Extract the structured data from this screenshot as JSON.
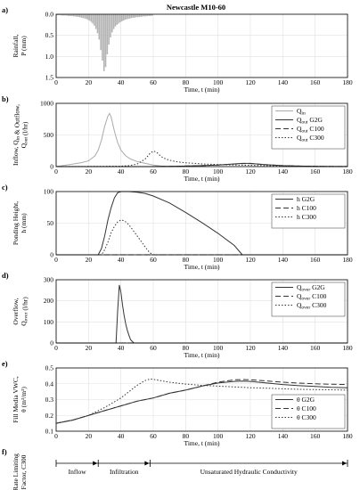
{
  "figure_title": "Newcastle M10-60",
  "chart_data": [
    {
      "id": "a",
      "type": "bar",
      "panel_label": "a)",
      "title": "Newcastle M10-60",
      "ylabel_line1": "Rainfall,",
      "ylabel_line2": "P (mm)",
      "xlabel": "Time, t (min)",
      "xlim": [
        0,
        180
      ],
      "ylim": [
        0,
        1.5
      ],
      "y_reversed": true,
      "yticks": [
        "0.0",
        "0.5",
        "1.0",
        "1.5"
      ],
      "xticks": [
        "0",
        "20",
        "40",
        "60",
        "80",
        "100",
        "120",
        "140",
        "160",
        "180"
      ],
      "bar_color": "#b4b4b4",
      "x": [
        1,
        2,
        3,
        4,
        5,
        6,
        7,
        8,
        9,
        10,
        11,
        12,
        13,
        14,
        15,
        16,
        17,
        18,
        19,
        20,
        21,
        22,
        23,
        24,
        25,
        26,
        27,
        28,
        29,
        30,
        31,
        32,
        33,
        34,
        35,
        36,
        37,
        38,
        39,
        40,
        41,
        42,
        43,
        44,
        45,
        46,
        47,
        48,
        49,
        50,
        51,
        52,
        53,
        54,
        55,
        56,
        57,
        58,
        59,
        60
      ],
      "values": [
        0.02,
        0.02,
        0.02,
        0.03,
        0.03,
        0.03,
        0.03,
        0.04,
        0.04,
        0.04,
        0.05,
        0.05,
        0.06,
        0.06,
        0.07,
        0.08,
        0.09,
        0.1,
        0.11,
        0.13,
        0.15,
        0.18,
        0.22,
        0.27,
        0.35,
        0.45,
        0.6,
        0.85,
        1.1,
        1.35,
        1.25,
        0.95,
        0.72,
        0.55,
        0.43,
        0.35,
        0.29,
        0.25,
        0.22,
        0.19,
        0.17,
        0.15,
        0.13,
        0.12,
        0.11,
        0.1,
        0.09,
        0.08,
        0.08,
        0.07,
        0.07,
        0.06,
        0.06,
        0.05,
        0.05,
        0.05,
        0.04,
        0.04,
        0.04,
        0.03
      ]
    },
    {
      "id": "b",
      "type": "line",
      "panel_label": "b)",
      "ylabel_line1": "Inflow, Q_in & Outflow,",
      "ylabel_line2": "Q_out (l/hr)",
      "xlabel": "Time, t (min)",
      "xlim": [
        0,
        180
      ],
      "ylim": [
        0,
        1000
      ],
      "yticks": [
        "0",
        "500",
        "1000"
      ],
      "xticks": [
        "0",
        "20",
        "40",
        "60",
        "80",
        "100",
        "120",
        "140",
        "160",
        "180"
      ],
      "legend_position": "top-right",
      "series": [
        {
          "name": "Q_in",
          "legend": {
            "main": "Q",
            "sub": "in",
            "suffix": ""
          },
          "color": "#aaaaaa",
          "dash": "",
          "x": [
            0,
            10,
            15,
            20,
            24,
            26,
            28,
            30,
            32,
            33,
            34,
            36,
            38,
            40,
            43,
            46,
            50,
            55,
            60,
            65,
            70
          ],
          "y": [
            0,
            40,
            60,
            90,
            170,
            260,
            420,
            640,
            800,
            840,
            780,
            560,
            380,
            260,
            170,
            120,
            80,
            50,
            25,
            8,
            0
          ]
        },
        {
          "name": "Q_out G2G",
          "legend": {
            "main": "Q",
            "sub": "out",
            "suffix": " G2G"
          },
          "color": "#333333",
          "dash": "",
          "x": [
            0,
            58,
            70,
            80,
            90,
            100,
            108,
            115,
            120,
            125,
            130,
            140,
            150,
            160,
            170,
            180
          ],
          "y": [
            0,
            0,
            3,
            8,
            15,
            25,
            38,
            50,
            50,
            40,
            30,
            15,
            8,
            4,
            2,
            1
          ]
        },
        {
          "name": "Q_out C100",
          "legend": {
            "main": "Q",
            "sub": "out",
            "suffix": " C100"
          },
          "color": "#333333",
          "dash": "6,3",
          "x": [
            0,
            58,
            70,
            80,
            90,
            100,
            108,
            115,
            120,
            125,
            130,
            140,
            150,
            160,
            170,
            180
          ],
          "y": [
            0,
            0,
            3,
            8,
            15,
            25,
            38,
            48,
            48,
            40,
            30,
            15,
            8,
            4,
            2,
            1
          ]
        },
        {
          "name": "Q_out C300",
          "legend": {
            "main": "Q",
            "sub": "out",
            "suffix": " C300"
          },
          "color": "#333333",
          "dash": "1.5,2",
          "x": [
            0,
            40,
            45,
            50,
            55,
            58,
            60,
            62,
            64,
            66,
            70,
            75,
            80,
            90,
            100,
            110,
            120,
            130,
            140,
            150,
            160,
            170,
            180
          ],
          "y": [
            0,
            5,
            15,
            40,
            120,
            210,
            245,
            230,
            180,
            140,
            100,
            75,
            60,
            42,
            32,
            25,
            20,
            15,
            10,
            7,
            5,
            3,
            2
          ]
        }
      ]
    },
    {
      "id": "c",
      "type": "line",
      "panel_label": "c)",
      "ylabel_line1": "Ponding Height,",
      "ylabel_line2": "h (mm)",
      "xlabel": "Time, t (min)",
      "xlim": [
        0,
        180
      ],
      "ylim": [
        0,
        100
      ],
      "yticks": [
        "0",
        "50",
        "100"
      ],
      "xticks": [
        "0",
        "20",
        "40",
        "60",
        "80",
        "100",
        "120",
        "140",
        "160",
        "180"
      ],
      "legend_position": "top-right",
      "series": [
        {
          "name": "h G2G",
          "legend": {
            "main": "h",
            "sub": "",
            "suffix": " G2G"
          },
          "color": "#333333",
          "dash": "",
          "x": [
            0,
            26,
            28,
            30,
            32,
            34,
            36,
            38,
            40,
            45,
            50,
            55,
            60,
            70,
            80,
            90,
            100,
            110,
            115,
            116,
            180
          ],
          "y": [
            0,
            0,
            10,
            30,
            55,
            75,
            90,
            98,
            100,
            100,
            99,
            97,
            93,
            82,
            67,
            51,
            34,
            15,
            0,
            0,
            0
          ]
        },
        {
          "name": "h C100",
          "legend": {
            "main": "h",
            "sub": "",
            "suffix": " C100"
          },
          "color": "#333333",
          "dash": "6,3",
          "x": [
            0,
            180
          ],
          "y": [
            0,
            0
          ]
        },
        {
          "name": "h C300",
          "legend": {
            "main": "h",
            "sub": "",
            "suffix": " C300"
          },
          "color": "#333333",
          "dash": "1.5,2",
          "x": [
            0,
            28,
            30,
            32,
            34,
            36,
            38,
            40,
            42,
            44,
            46,
            48,
            50,
            52,
            54,
            56,
            58,
            60,
            180
          ],
          "y": [
            0,
            0,
            8,
            20,
            35,
            45,
            52,
            55,
            54,
            50,
            44,
            37,
            30,
            23,
            16,
            9,
            3,
            0,
            0
          ]
        }
      ]
    },
    {
      "id": "d",
      "type": "line",
      "panel_label": "d)",
      "ylabel_line1": "Overflow,",
      "ylabel_line2": "Q_over (l/hr)",
      "xlabel": "Time, t (min)",
      "xlim": [
        0,
        180
      ],
      "ylim": [
        0,
        300
      ],
      "yticks": [
        "0",
        "100",
        "200",
        "300"
      ],
      "xticks": [
        "0",
        "20",
        "40",
        "60",
        "80",
        "100",
        "120",
        "140",
        "160",
        "180"
      ],
      "legend_position": "top-right",
      "series": [
        {
          "name": "Q_over G2G",
          "legend": {
            "main": "Q",
            "sub": "over",
            "suffix": " G2G"
          },
          "color": "#333333",
          "dash": "",
          "x": [
            0,
            37,
            38,
            39,
            40,
            41,
            42,
            43,
            44,
            45,
            46,
            48,
            180
          ],
          "y": [
            0,
            0,
            150,
            275,
            240,
            180,
            130,
            90,
            60,
            35,
            15,
            0,
            0
          ]
        },
        {
          "name": "Q_over C100",
          "legend": {
            "main": "Q",
            "sub": "over",
            "suffix": " C100"
          },
          "color": "#333333",
          "dash": "6,3",
          "x": [
            0,
            180
          ],
          "y": [
            0,
            0
          ]
        },
        {
          "name": "Q_over C300",
          "legend": {
            "main": "Q",
            "sub": "over",
            "suffix": " C300"
          },
          "color": "#333333",
          "dash": "1.5,2",
          "x": [
            0,
            180
          ],
          "y": [
            0,
            0
          ]
        }
      ]
    },
    {
      "id": "e",
      "type": "line",
      "panel_label": "e)",
      "ylabel_line1": "Fill Media VWC,",
      "ylabel_line2": "θ (m³/m³)",
      "xlabel": "Time, t (min)",
      "xlim": [
        0,
        180
      ],
      "ylim": [
        0.1,
        0.5
      ],
      "yticks": [
        "0.1",
        "0.2",
        "0.3",
        "0.4",
        "0.5"
      ],
      "xticks": [
        "0",
        "20",
        "40",
        "60",
        "80",
        "100",
        "120",
        "140",
        "160",
        "180"
      ],
      "legend_position": "bottom-right",
      "series": [
        {
          "name": "θ G2G",
          "legend": {
            "main": "θ",
            "sub": "",
            "suffix": " G2G"
          },
          "color": "#333333",
          "dash": "",
          "x": [
            0,
            10,
            20,
            30,
            40,
            50,
            60,
            70,
            80,
            90,
            100,
            110,
            115,
            120,
            130,
            140,
            150,
            160,
            170,
            180
          ],
          "y": [
            0.15,
            0.17,
            0.2,
            0.23,
            0.26,
            0.29,
            0.31,
            0.34,
            0.36,
            0.385,
            0.405,
            0.415,
            0.417,
            0.415,
            0.405,
            0.395,
            0.388,
            0.383,
            0.378,
            0.375
          ]
        },
        {
          "name": "θ C100",
          "legend": {
            "main": "θ",
            "sub": "",
            "suffix": " C100"
          },
          "color": "#333333",
          "dash": "6,3",
          "x": [
            0,
            10,
            20,
            30,
            40,
            50,
            60,
            70,
            80,
            90,
            100,
            110,
            115,
            120,
            130,
            140,
            150,
            160,
            170,
            180
          ],
          "y": [
            0.15,
            0.17,
            0.2,
            0.23,
            0.26,
            0.29,
            0.31,
            0.34,
            0.36,
            0.385,
            0.41,
            0.425,
            0.427,
            0.425,
            0.418,
            0.41,
            0.404,
            0.4,
            0.397,
            0.395
          ]
        },
        {
          "name": "θ C300",
          "legend": {
            "main": "θ",
            "sub": "",
            "suffix": " C300"
          },
          "color": "#333333",
          "dash": "1.5,2",
          "x": [
            0,
            10,
            20,
            30,
            35,
            40,
            45,
            50,
            55,
            58,
            60,
            70,
            80,
            90,
            100,
            110,
            120,
            130,
            140,
            150,
            160,
            170,
            180
          ],
          "y": [
            0.15,
            0.17,
            0.2,
            0.25,
            0.28,
            0.31,
            0.35,
            0.39,
            0.42,
            0.43,
            0.428,
            0.41,
            0.398,
            0.39,
            0.385,
            0.38,
            0.375,
            0.372,
            0.368,
            0.365,
            0.363,
            0.362,
            0.36
          ]
        }
      ]
    }
  ],
  "rate_panel": {
    "panel_label": "f)",
    "ylabel_line1": "Rate Limiting",
    "ylabel_line2": "Factor, C300",
    "segments": [
      {
        "label": "Inflow",
        "start": 0,
        "end": 26
      },
      {
        "label": "Infiltration",
        "start": 26,
        "end": 58
      },
      {
        "label": "Unsaturated Hydraulic Conductivity",
        "start": 58,
        "end": 180
      }
    ]
  }
}
